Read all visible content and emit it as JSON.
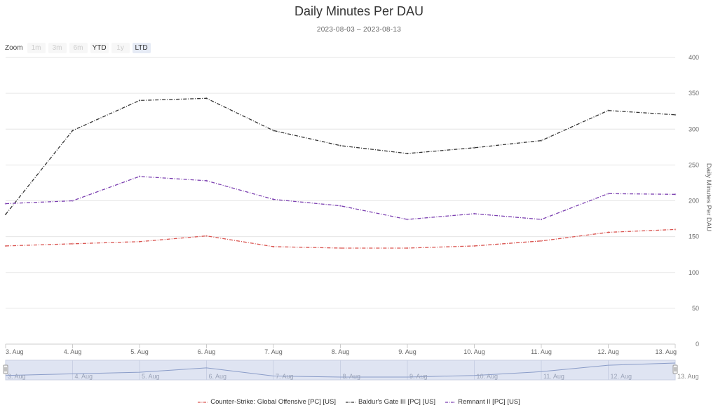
{
  "chart_data": {
    "type": "line",
    "title": "Daily Minutes Per DAU",
    "subtitle": "2023-08-03 – 2023-08-13",
    "ylabel": "Daily Minutes Per DAU",
    "ylim": [
      0,
      400
    ],
    "yticks": [
      "0",
      "50",
      "100",
      "150",
      "200",
      "250",
      "300",
      "350",
      "400"
    ],
    "x": [
      "3. Aug",
      "4. Aug",
      "5. Aug",
      "6. Aug",
      "7. Aug",
      "8. Aug",
      "9. Aug",
      "10. Aug",
      "11. Aug",
      "12. Aug",
      "13. Aug"
    ],
    "grid": true,
    "legend_position": "bottom",
    "series": [
      {
        "name": "Counter-Strike: Global Offensive [PC] [US]",
        "color": "#d9534f",
        "values": [
          137,
          140,
          143,
          151,
          136,
          134,
          134,
          137,
          144,
          156,
          160
        ]
      },
      {
        "name": "Baldur's Gate III [PC] [US]",
        "color": "#333333",
        "values": [
          181,
          298,
          340,
          343,
          298,
          277,
          266,
          274,
          284,
          326,
          320
        ]
      },
      {
        "name": "Remnant II [PC] [US]",
        "color": "#7b3fb0",
        "values": [
          196,
          200,
          234,
          228,
          202,
          193,
          174,
          182,
          174,
          210,
          209
        ]
      }
    ],
    "navigator_series": "Counter-Strike: Global Offensive [PC] [US]"
  },
  "zoom": {
    "label": "Zoom",
    "buttons": [
      {
        "label": "1m",
        "state": "disabled"
      },
      {
        "label": "3m",
        "state": "disabled"
      },
      {
        "label": "6m",
        "state": "disabled"
      },
      {
        "label": "YTD",
        "state": "enabled"
      },
      {
        "label": "1y",
        "state": "disabled"
      },
      {
        "label": "LTD",
        "state": "active"
      }
    ]
  },
  "legend": {
    "items": [
      "Counter-Strike: Global Offensive [PC] [US]",
      "Baldur's Gate III [PC] [US]",
      "Remnant II [PC] [US]"
    ]
  }
}
